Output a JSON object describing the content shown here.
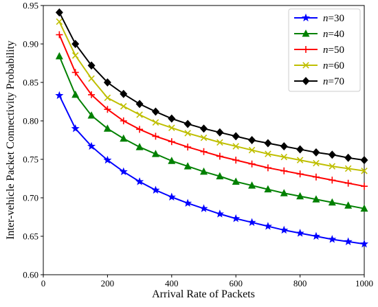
{
  "chart_data": {
    "type": "line",
    "title": "",
    "xlabel": "Arrival Rate of Packets",
    "ylabel": "Inter-vehicle Packet Connectivity Probability",
    "xlim": [
      0,
      1000
    ],
    "ylim": [
      0.6,
      0.95
    ],
    "x_ticks": [
      0,
      200,
      400,
      600,
      800,
      1000
    ],
    "y_ticks": [
      0.6,
      0.65,
      0.7,
      0.75,
      0.8,
      0.85,
      0.9,
      0.95
    ],
    "x_tick_labels": [
      "0",
      "200",
      "400",
      "600",
      "800",
      "1000"
    ],
    "y_tick_labels": [
      "0.60",
      "0.65",
      "0.70",
      "0.75",
      "0.80",
      "0.85",
      "0.90",
      "0.95"
    ],
    "grid": false,
    "legend_position": "top-right",
    "x": [
      50,
      100,
      150,
      200,
      250,
      300,
      350,
      400,
      450,
      500,
      550,
      600,
      650,
      700,
      750,
      800,
      850,
      900,
      950,
      1000
    ],
    "series": [
      {
        "name_var": "n",
        "name_value": "=30",
        "color": "#0000ff",
        "marker": "star",
        "values": [
          0.833,
          0.79,
          0.767,
          0.749,
          0.734,
          0.721,
          0.71,
          0.701,
          0.693,
          0.686,
          0.679,
          0.673,
          0.668,
          0.663,
          0.658,
          0.654,
          0.65,
          0.646,
          0.643,
          0.64
        ]
      },
      {
        "name_var": "n",
        "name_value": "=40",
        "color": "#008000",
        "marker": "triangle",
        "values": [
          0.884,
          0.834,
          0.807,
          0.79,
          0.777,
          0.766,
          0.757,
          0.748,
          0.741,
          0.734,
          0.728,
          0.721,
          0.716,
          0.711,
          0.706,
          0.702,
          0.698,
          0.694,
          0.69,
          0.686
        ]
      },
      {
        "name_var": "n",
        "name_value": "=50",
        "color": "#ff0000",
        "marker": "plus",
        "values": [
          0.912,
          0.863,
          0.834,
          0.815,
          0.8,
          0.789,
          0.78,
          0.773,
          0.766,
          0.76,
          0.754,
          0.749,
          0.744,
          0.739,
          0.735,
          0.731,
          0.727,
          0.723,
          0.719,
          0.715
        ]
      },
      {
        "name_var": "n",
        "name_value": "=60",
        "color": "#bfbf00",
        "marker": "x",
        "values": [
          0.929,
          0.885,
          0.855,
          0.83,
          0.819,
          0.808,
          0.798,
          0.791,
          0.784,
          0.778,
          0.772,
          0.767,
          0.762,
          0.757,
          0.753,
          0.749,
          0.745,
          0.741,
          0.738,
          0.735
        ]
      },
      {
        "name_var": "n",
        "name_value": "=70",
        "color": "#000000",
        "marker": "diamond",
        "values": [
          0.941,
          0.9,
          0.872,
          0.85,
          0.835,
          0.822,
          0.812,
          0.803,
          0.796,
          0.79,
          0.785,
          0.78,
          0.775,
          0.771,
          0.767,
          0.763,
          0.759,
          0.756,
          0.752,
          0.749
        ]
      }
    ]
  }
}
